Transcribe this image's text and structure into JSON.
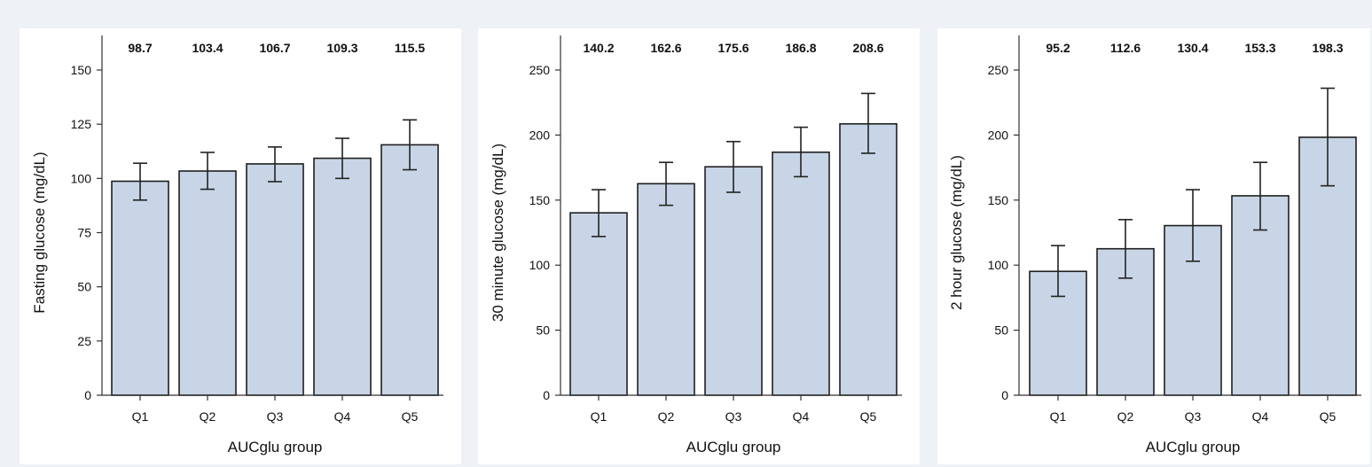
{
  "colors": {
    "bar_fill": "#c8d5e6",
    "bar_stroke": "#1f1f1f",
    "panel_bg": "#ffffff",
    "page_bg": "#eef1f6",
    "axis": "#333333"
  },
  "chart_data": [
    {
      "type": "bar",
      "categories": [
        "Q1",
        "Q2",
        "Q3",
        "Q4",
        "Q5"
      ],
      "values": [
        98.7,
        103.4,
        106.7,
        109.3,
        115.5
      ],
      "value_labels": [
        "98.7",
        "103.4",
        "106.7",
        "109.3",
        "115.5"
      ],
      "error_low": [
        90.0,
        95.0,
        98.5,
        100.0,
        104.0
      ],
      "error_high": [
        107.0,
        112.0,
        114.5,
        118.5,
        127.0
      ],
      "xlabel": "AUCglu group",
      "ylabel": "Fasting glucose (mg/dL)",
      "ylim": [
        0,
        150
      ],
      "yticks": [
        "0",
        "25",
        "50",
        "75",
        "100",
        "125",
        "150"
      ],
      "grid": false
    },
    {
      "type": "bar",
      "categories": [
        "Q1",
        "Q2",
        "Q3",
        "Q4",
        "Q5"
      ],
      "values": [
        140.2,
        162.6,
        175.6,
        186.8,
        208.6
      ],
      "value_labels": [
        "140.2",
        "162.6",
        "175.6",
        "186.8",
        "208.6"
      ],
      "error_low": [
        122.0,
        146.0,
        156.0,
        168.0,
        186.0
      ],
      "error_high": [
        158.0,
        179.0,
        195.0,
        206.0,
        232.0
      ],
      "xlabel": "AUCglu group",
      "ylabel": "30 minute glucose (mg/dL)",
      "ylim": [
        0,
        250
      ],
      "yticks": [
        "0",
        "50",
        "100",
        "150",
        "200",
        "250"
      ],
      "grid": false
    },
    {
      "type": "bar",
      "categories": [
        "Q1",
        "Q2",
        "Q3",
        "Q4",
        "Q5"
      ],
      "values": [
        95.2,
        112.6,
        130.4,
        153.3,
        198.3
      ],
      "value_labels": [
        "95.2",
        "112.6",
        "130.4",
        "153.3",
        "198.3"
      ],
      "error_low": [
        76.0,
        90.0,
        103.0,
        127.0,
        161.0
      ],
      "error_high": [
        115.0,
        135.0,
        158.0,
        179.0,
        236.0
      ],
      "xlabel": "AUCglu group",
      "ylabel": "2 hour glucose (mg/dL)",
      "ylim": [
        0,
        250
      ],
      "yticks": [
        "0",
        "50",
        "100",
        "150",
        "200",
        "250"
      ],
      "grid": false
    }
  ]
}
